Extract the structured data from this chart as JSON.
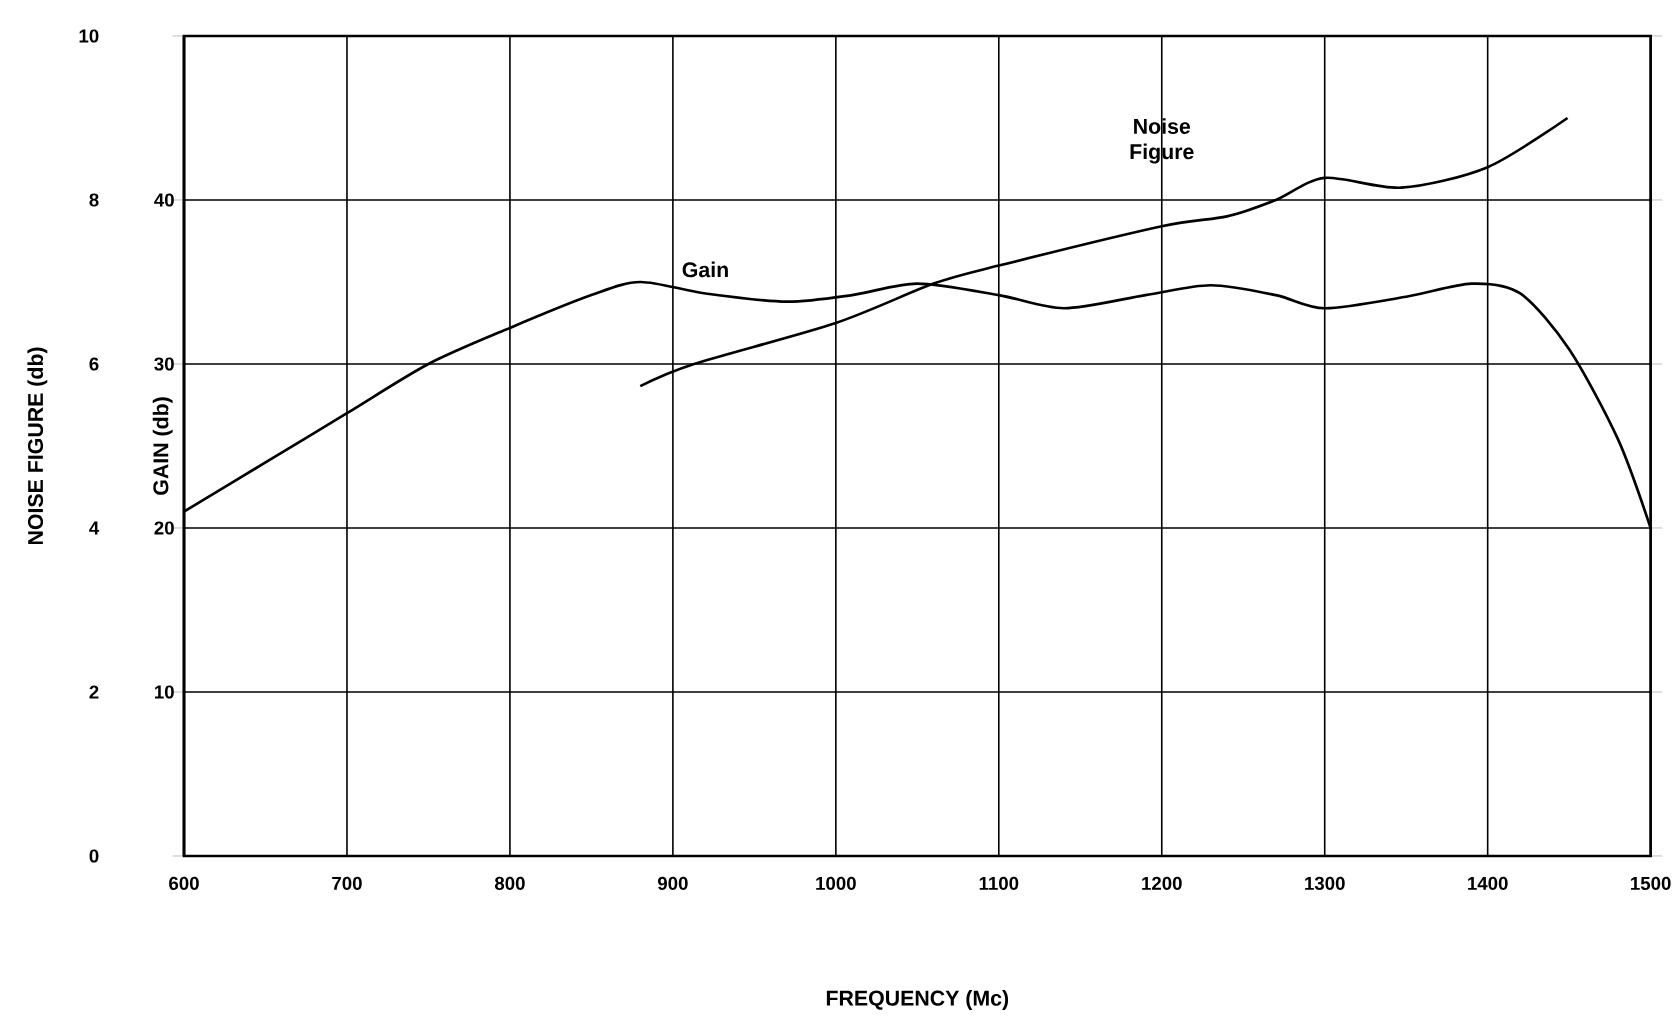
{
  "chart_data": {
    "type": "line",
    "xlabel": "FREQUENCY (Mc)",
    "ylabel": "NOISE FIGURE (db)",
    "y2label": "GAIN (db)",
    "xlim": [
      600,
      1500
    ],
    "xticks": [
      600,
      700,
      800,
      900,
      1000,
      1100,
      1200,
      1300,
      1400,
      1500
    ],
    "ylim": [
      0,
      10
    ],
    "yticks": [
      0,
      2,
      4,
      6,
      8,
      10
    ],
    "y2lim": [
      0,
      50
    ],
    "y2ticks": [
      10,
      20,
      30,
      40
    ],
    "grid": true,
    "legend": false,
    "marker": "none",
    "line_style": "solid",
    "series": [
      {
        "name": "Gain",
        "color": "#000000",
        "axis": "y2",
        "x": [
          600,
          650,
          700,
          750,
          800,
          850,
          880,
          920,
          970,
          1010,
          1050,
          1100,
          1140,
          1190,
          1230,
          1270,
          1300,
          1350,
          1390,
          1420,
          1450,
          1480,
          1500
        ],
        "values": [
          21,
          24,
          27,
          30,
          32.2,
          34.2,
          35,
          34.3,
          33.8,
          34.2,
          34.9,
          34.2,
          33.4,
          34.2,
          34.8,
          34.2,
          33.4,
          34.1,
          34.9,
          34.3,
          30.9,
          25.4,
          20
        ]
      },
      {
        "name": "Noise Figure",
        "color": "#000000",
        "axis": "y",
        "x": [
          880,
          913,
          1000,
          1060,
          1100,
          1200,
          1240,
          1270,
          1300,
          1347,
          1400,
          1449
        ],
        "values": [
          5.73,
          6.0,
          6.5,
          6.98,
          7.2,
          7.68,
          7.8,
          8.0,
          8.27,
          8.15,
          8.4,
          9.0
        ]
      }
    ]
  }
}
